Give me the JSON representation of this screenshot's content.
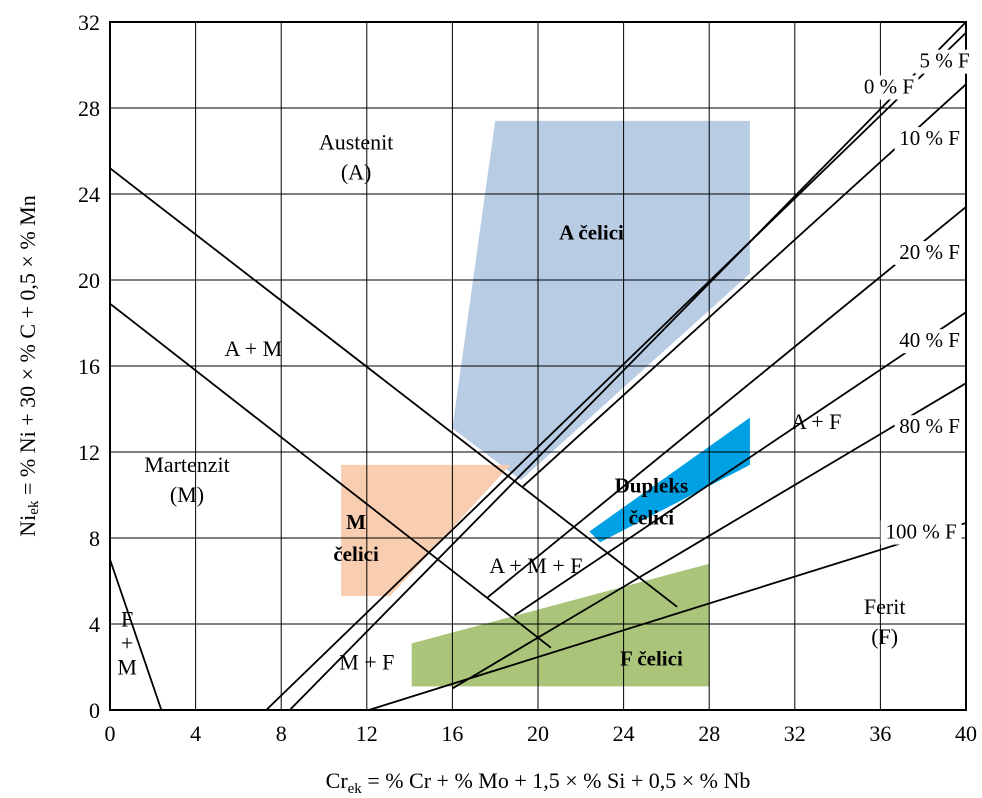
{
  "chart_data": {
    "type": "diagram",
    "xlim": [
      0,
      40
    ],
    "ylim": [
      0,
      32
    ],
    "x_ticks": [
      0,
      4,
      8,
      12,
      16,
      20,
      24,
      28,
      32,
      36,
      40
    ],
    "y_ticks": [
      0,
      4,
      8,
      12,
      16,
      20,
      24,
      28,
      32
    ],
    "grid": true,
    "xlabel": {
      "main": "Cr",
      "sub": "ek",
      "rest": " = % Cr + % Mo + 1,5 × % Si + 0,5 × % Nb"
    },
    "ylabel": {
      "main": "Ni",
      "sub": "ek",
      "rest": " = % Ni + 30 × % C + 0,5 × % Mn"
    },
    "colors": {
      "austenitic": "#b8cce4",
      "martensitic": "#f8cdb0",
      "duplex": "#00a0e4",
      "ferritic": "#aac47a"
    },
    "steel_regions": [
      {
        "name": "austenitic",
        "label": [
          "A čelici"
        ],
        "color": "#b8cce4",
        "label_pos": [
          22.5,
          22.2
        ],
        "points": [
          [
            18,
            27.4
          ],
          [
            29.9,
            27.4
          ],
          [
            29.9,
            20.3
          ],
          [
            19.2,
            10.7
          ],
          [
            16,
            13.1
          ]
        ]
      },
      {
        "name": "martensitic",
        "label": [
          "M",
          "čelici"
        ],
        "color": "#f8cdb0",
        "label_pos": [
          11.5,
          8
        ],
        "points": [
          [
            10.8,
            11.4
          ],
          [
            18.7,
            11.4
          ],
          [
            13.1,
            5.3
          ],
          [
            10.8,
            5.3
          ]
        ]
      },
      {
        "name": "duplex",
        "label": [
          "Dupleks",
          "čelici"
        ],
        "color": "#00a0e4",
        "label_pos": [
          25.3,
          9.7
        ],
        "points": [
          [
            22.4,
            8.3
          ],
          [
            29.9,
            13.6
          ],
          [
            29.9,
            11.4
          ],
          [
            22.9,
            7.8
          ]
        ]
      },
      {
        "name": "ferritic",
        "label": [
          "F čelici"
        ],
        "color": "#aac47a",
        "label_pos": [
          25.3,
          2.4
        ],
        "points": [
          [
            14.1,
            3.1
          ],
          [
            28,
            6.8
          ],
          [
            28,
            1.1
          ],
          [
            14.1,
            1.1
          ]
        ]
      }
    ],
    "ferrite_lines": [
      {
        "label": "0 % F",
        "from": [
          7.3,
          0
        ],
        "to": [
          40,
          31.5
        ],
        "label_pos": [
          36.4,
          29
        ]
      },
      {
        "label": "5 % F",
        "from": [
          8.4,
          0
        ],
        "to": [
          40,
          32
        ],
        "label_pos": [
          39,
          30.2
        ]
      },
      {
        "label": "10 % F",
        "from": [
          19.3,
          10.4
        ],
        "to": [
          40,
          29.1
        ],
        "label_pos": [
          38.3,
          26.6
        ]
      },
      {
        "label": "20 % F",
        "from": [
          17.6,
          5.2
        ],
        "to": [
          40,
          23.4
        ],
        "label_pos": [
          38.3,
          21.3
        ]
      },
      {
        "label": "40 % F",
        "from": [
          18.9,
          4.4
        ],
        "to": [
          40,
          18.5
        ],
        "label_pos": [
          38.3,
          17.2
        ]
      },
      {
        "label": "80 % F",
        "from": [
          16,
          1
        ],
        "to": [
          40,
          15.2
        ],
        "label_pos": [
          38.3,
          13.2
        ]
      },
      {
        "label": "100 % F",
        "from": [
          12.1,
          0
        ],
        "to": [
          40,
          8.7
        ],
        "label_pos": [
          37.9,
          8.3
        ]
      }
    ],
    "boundary_lines": [
      {
        "name": "a-m-upper",
        "from": [
          0,
          25.2
        ],
        "to": [
          26.5,
          4.8
        ]
      },
      {
        "name": "a-m-lower",
        "from": [
          0,
          18.9
        ],
        "to": [
          20.6,
          2.9
        ]
      },
      {
        "name": "f-m",
        "from": [
          0,
          7
        ],
        "to": [
          2.4,
          0
        ]
      }
    ],
    "region_labels": [
      {
        "lines": [
          "Austenit",
          "(A)"
        ],
        "pos": [
          11.5,
          25.7
        ]
      },
      {
        "lines": [
          "Martenzit",
          "(M)"
        ],
        "pos": [
          3.6,
          10.7
        ]
      },
      {
        "lines": [
          "A + M"
        ],
        "pos": [
          6.7,
          16.8
        ]
      },
      {
        "lines": [
          "A + M + F"
        ],
        "pos": [
          19.9,
          6.7
        ]
      },
      {
        "lines": [
          "M + F"
        ],
        "pos": [
          12,
          2.2
        ]
      },
      {
        "lines": [
          "A + F"
        ],
        "pos": [
          33,
          13.4
        ]
      },
      {
        "lines": [
          "Ferit",
          "(F)"
        ],
        "pos": [
          36.2,
          4.1
        ]
      },
      {
        "lines": [
          "F",
          "+",
          "M"
        ],
        "pos": [
          0.8,
          3.1
        ]
      }
    ]
  }
}
